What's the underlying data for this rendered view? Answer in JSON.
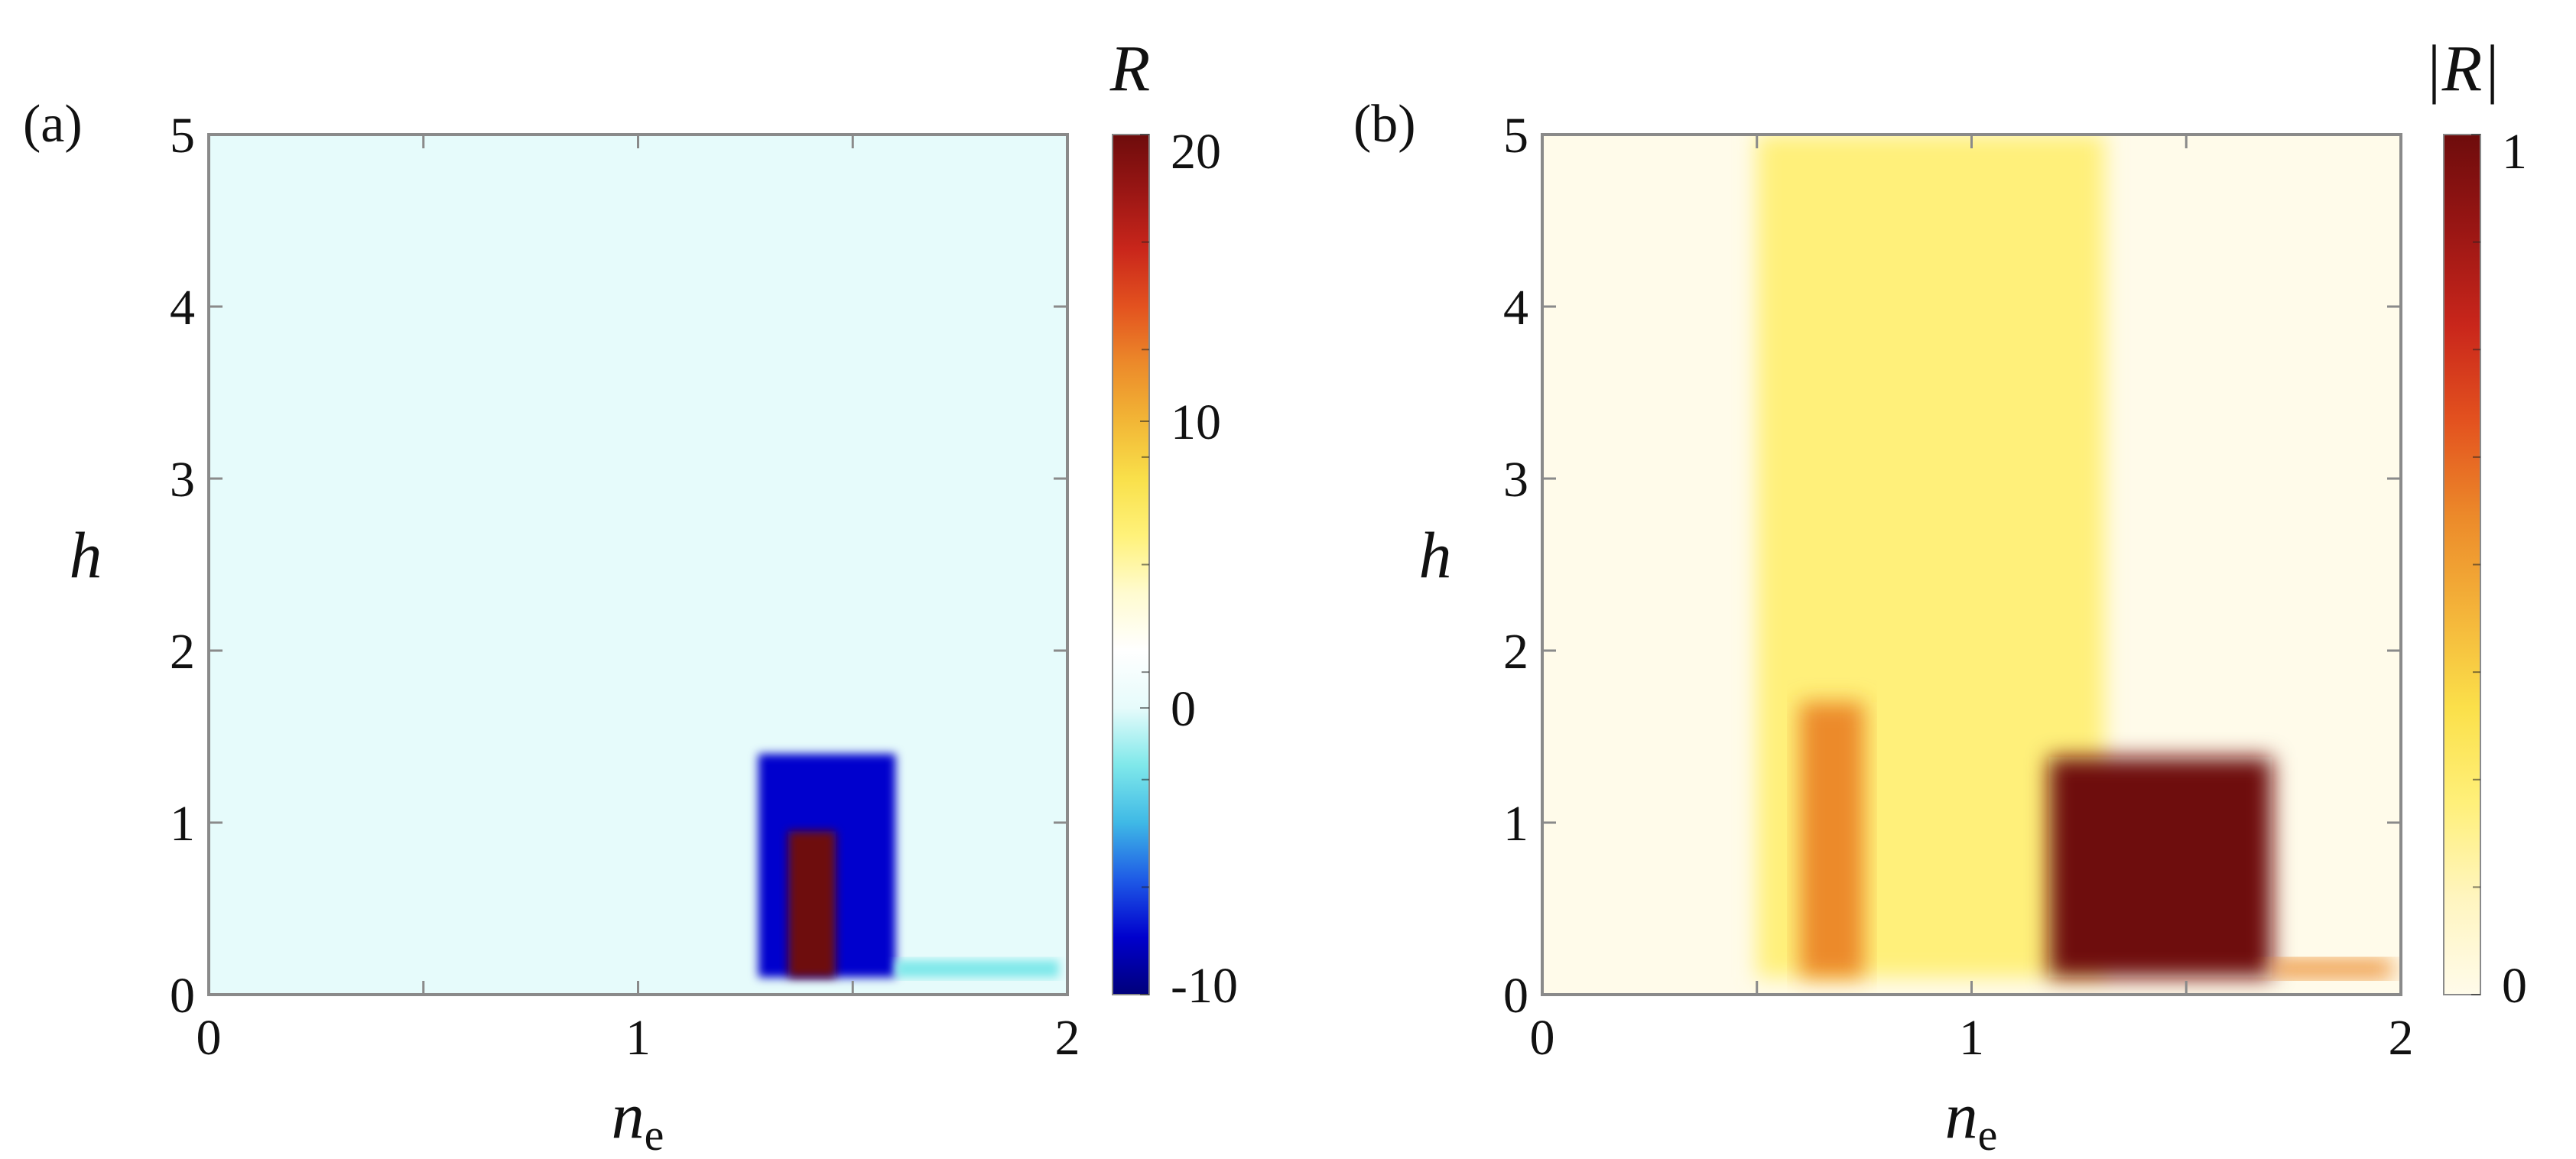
{
  "chart_data": [
    {
      "type": "heatmap",
      "panel_label": "(a)",
      "xlabel_main": "n",
      "xlabel_sub": "e",
      "ylabel": "h",
      "x_ticks": [
        "0",
        "1",
        "2"
      ],
      "y_ticks": [
        "0",
        "1",
        "2",
        "3",
        "4",
        "5"
      ],
      "xlim": [
        0,
        2
      ],
      "ylim": [
        0,
        5
      ],
      "grid": false,
      "colorbar": {
        "title": "R",
        "range": [
          -10,
          20
        ],
        "tick_labels": [
          "20",
          "10",
          "0",
          "-10"
        ],
        "tick_values": [
          20,
          10,
          0,
          -10
        ],
        "colors": [
          "#00007a",
          "#0000cd",
          "#1e5ae6",
          "#3fb9e6",
          "#7fe8ea",
          "#e6fbfb",
          "#ffffff",
          "#fffbd0",
          "#fff27a",
          "#f9e04a",
          "#f2b636",
          "#ec8a2a",
          "#e3521f",
          "#c9261b",
          "#9a1614",
          "#6e0c0c"
        ]
      },
      "features": [
        {
          "kind": "background",
          "value": 0
        },
        {
          "kind": "band",
          "x": [
            0.68,
            1.31
          ],
          "y": [
            0.1,
            5
          ],
          "value": -0.3
        },
        {
          "kind": "region",
          "x": [
            1.28,
            1.6
          ],
          "y": [
            0.1,
            1.4
          ],
          "value": -9
        },
        {
          "kind": "region",
          "x": [
            1.35,
            1.46
          ],
          "y": [
            0.1,
            0.95
          ],
          "value": 20
        },
        {
          "kind": "tail",
          "x": [
            1.6,
            1.98
          ],
          "y": [
            0.1,
            0.2
          ],
          "value": -3
        }
      ]
    },
    {
      "type": "heatmap",
      "panel_label": "(b)",
      "xlabel_main": "n",
      "xlabel_sub": "e",
      "ylabel": "h",
      "x_ticks": [
        "0",
        "1",
        "2"
      ],
      "y_ticks": [
        "0",
        "1",
        "2",
        "3",
        "4",
        "5"
      ],
      "xlim": [
        0,
        2
      ],
      "ylim": [
        0,
        5
      ],
      "grid": false,
      "colorbar": {
        "title": "|R|",
        "range": [
          0,
          1
        ],
        "tick_labels": [
          "1",
          "0"
        ],
        "tick_values": [
          1,
          0
        ],
        "colors": [
          "#fffbea",
          "#fff5c0",
          "#fff07a",
          "#fbe04a",
          "#f4b43a",
          "#ec8a2a",
          "#e3521f",
          "#c9261b",
          "#9a1614",
          "#6e0c0c"
        ]
      },
      "features": [
        {
          "kind": "background",
          "value": 0.03
        },
        {
          "kind": "band",
          "x": [
            0.5,
            1.31
          ],
          "y": [
            0.1,
            5
          ],
          "value": 0.18
        },
        {
          "kind": "stripe",
          "x": [
            0.6,
            0.75
          ],
          "y": [
            0.1,
            1.7
          ],
          "value": 0.55
        },
        {
          "kind": "region",
          "x": [
            1.18,
            1.7
          ],
          "y": [
            0.1,
            1.38
          ],
          "value": 1
        },
        {
          "kind": "tail",
          "x": [
            1.7,
            1.98
          ],
          "y": [
            0.1,
            0.2
          ],
          "value": 0.6
        }
      ]
    }
  ]
}
